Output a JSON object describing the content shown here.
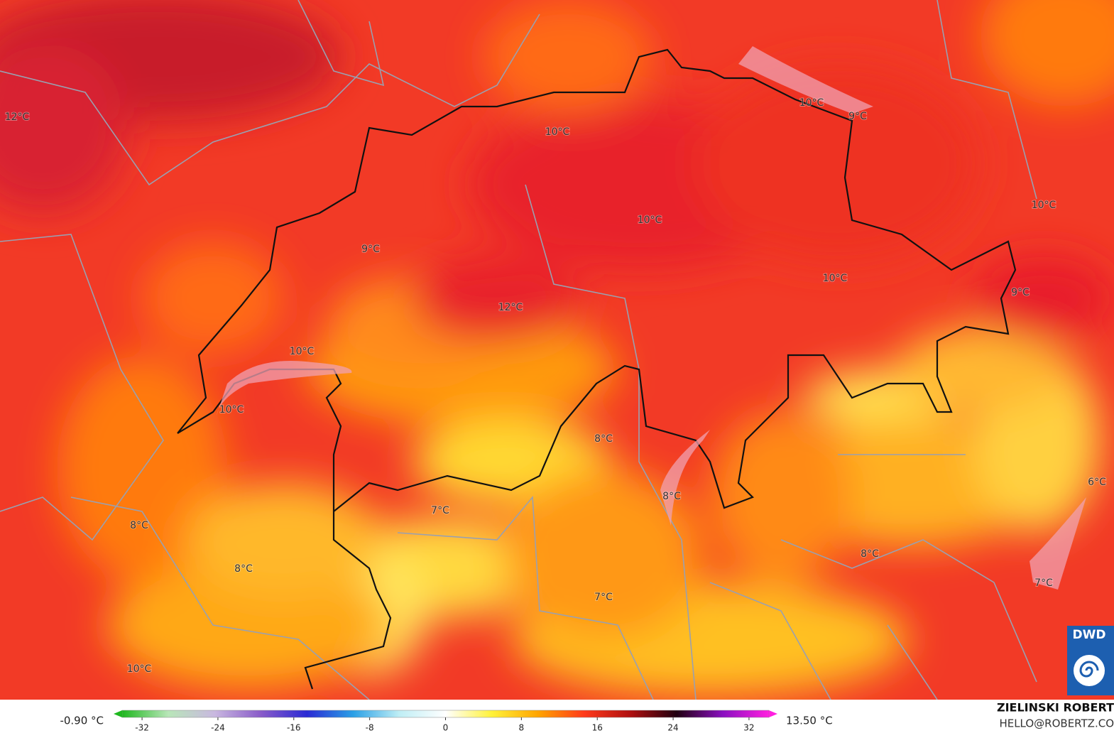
{
  "map": {
    "labels": [
      "12°C",
      "10°C",
      "9°C",
      "10°C",
      "10°C",
      "9°C",
      "10°C",
      "10°C",
      "9°C",
      "12°C",
      "10°C",
      "10°C",
      "8°C",
      "6°C",
      "8°C",
      "7°C",
      "8°C",
      "8°C",
      "8°C",
      "7°C",
      "7°C",
      "10°C"
    ]
  },
  "colorbar": {
    "min_label": "-0.90 °C",
    "max_label": "13.50 °C",
    "range": [
      -35,
      35
    ],
    "ticks": [
      -32,
      -24,
      -16,
      -8,
      0,
      8,
      16,
      24,
      32
    ],
    "colors": [
      "#1fb81f",
      "#b8e6b8",
      "#c9b8e0",
      "#8a5cc9",
      "#2a2ad4",
      "#2aa0e6",
      "#bfeef5",
      "#ffffff",
      "#fff23a",
      "#ffa500",
      "#ff3a1a",
      "#b01010",
      "#200010",
      "#8a10c0",
      "#ff20e0"
    ]
  },
  "branding": {
    "author": "ZIELINSKI ROBERT",
    "contact": "HELLO@ROBERTZ.CO",
    "logo": "DWD"
  }
}
